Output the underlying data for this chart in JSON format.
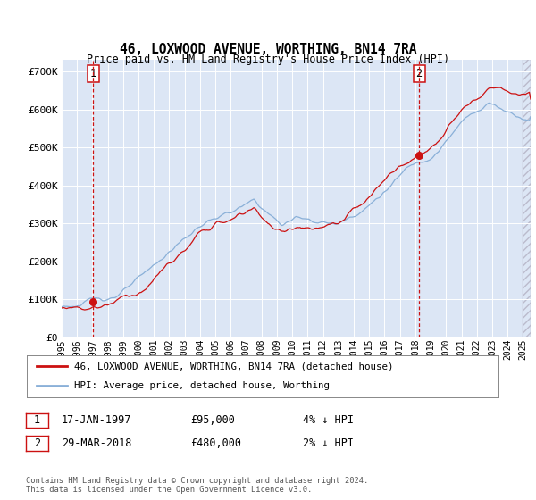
{
  "title": "46, LOXWOOD AVENUE, WORTHING, BN14 7RA",
  "subtitle": "Price paid vs. HM Land Registry's House Price Index (HPI)",
  "ylabel_ticks": [
    "£0",
    "£100K",
    "£200K",
    "£300K",
    "£400K",
    "£500K",
    "£600K",
    "£700K"
  ],
  "ylim": [
    0,
    730000
  ],
  "xlim_start": 1995.0,
  "xlim_end": 2025.5,
  "sale1_date": 1997.04,
  "sale1_price": 95000,
  "sale1_label": "1",
  "sale2_date": 2018.24,
  "sale2_price": 480000,
  "sale2_label": "2",
  "line_color_hpi": "#8ab0d8",
  "line_color_price": "#cc1111",
  "dot_color": "#cc1111",
  "bg_color": "#dce6f5",
  "grid_color": "#ffffff",
  "legend1": "46, LOXWOOD AVENUE, WORTHING, BN14 7RA (detached house)",
  "legend2": "HPI: Average price, detached house, Worthing",
  "table_row1": [
    "1",
    "17-JAN-1997",
    "£95,000",
    "4% ↓ HPI"
  ],
  "table_row2": [
    "2",
    "29-MAR-2018",
    "£480,000",
    "2% ↓ HPI"
  ],
  "footer": "Contains HM Land Registry data © Crown copyright and database right 2024.\nThis data is licensed under the Open Government Licence v3.0."
}
